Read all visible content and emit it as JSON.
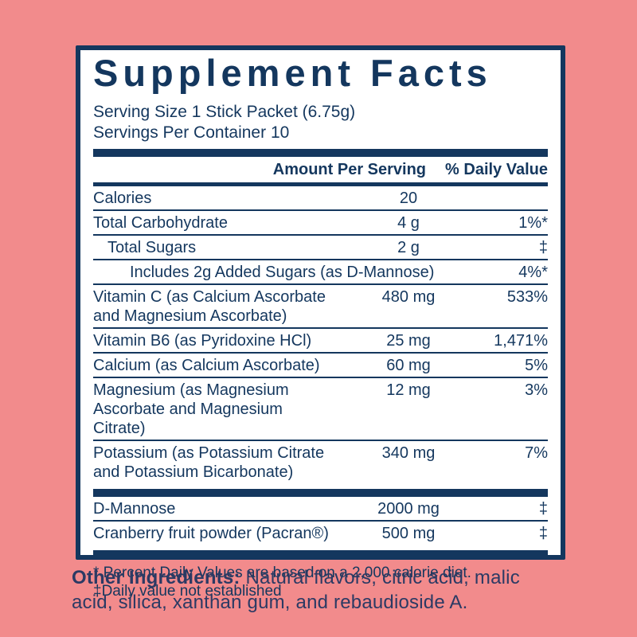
{
  "colors": {
    "background": "#F28B8C",
    "navy": "#14375E",
    "panel_background": "#FFFFFF",
    "ingredients_text": "#2C3A64"
  },
  "panel": {
    "title": "Supplement Facts",
    "serving_size": "Serving Size 1 Stick Packet (6.75g)",
    "servings_per_container": "Servings Per Container 10",
    "columns": {
      "amount": "Amount Per Serving",
      "daily_value": "% Daily Value"
    },
    "rows": [
      {
        "name": "Calories",
        "amount": "20",
        "dv": ""
      },
      {
        "name": "Total Carbohydrate",
        "amount": "4 g",
        "dv": "1%*"
      },
      {
        "name": "Total Sugars",
        "amount": "2 g",
        "dv": "‡"
      },
      {
        "name": "Includes 2g Added Sugars (as D-Mannose)",
        "amount": "",
        "dv": "4%*"
      },
      {
        "name": "Vitamin C (as Calcium Ascorbate and Magnesium Ascorbate)",
        "amount": "480 mg",
        "dv": "533%"
      },
      {
        "name": "Vitamin B6 (as Pyridoxine HCl)",
        "amount": "25 mg",
        "dv": "1,471%"
      },
      {
        "name": "Calcium (as Calcium Ascorbate)",
        "amount": "60 mg",
        "dv": "5%"
      },
      {
        "name": "Magnesium (as Magnesium Ascorbate and Magnesium Citrate)",
        "amount": "12 mg",
        "dv": "3%"
      },
      {
        "name": "Potassium (as Potassium Citrate and Potassium Bicarbonate)",
        "amount": "340 mg",
        "dv": "7%"
      }
    ],
    "extra_rows": [
      {
        "name": "D-Mannose",
        "amount": "2000 mg",
        "dv": "‡"
      },
      {
        "name": "Cranberry fruit powder (Pacran®)",
        "amount": "500 mg",
        "dv": "‡"
      }
    ],
    "footnotes": [
      "* Percent Daily Values are based on a 2,000 calorie diet.",
      "‡Daily value not established"
    ]
  },
  "other_ingredients": {
    "label": "Other Ingredients:",
    "line1": " Natural flavors, citric acid, malic",
    "line2": "acid, silica, xanthan gum, and rebaudioside A."
  }
}
